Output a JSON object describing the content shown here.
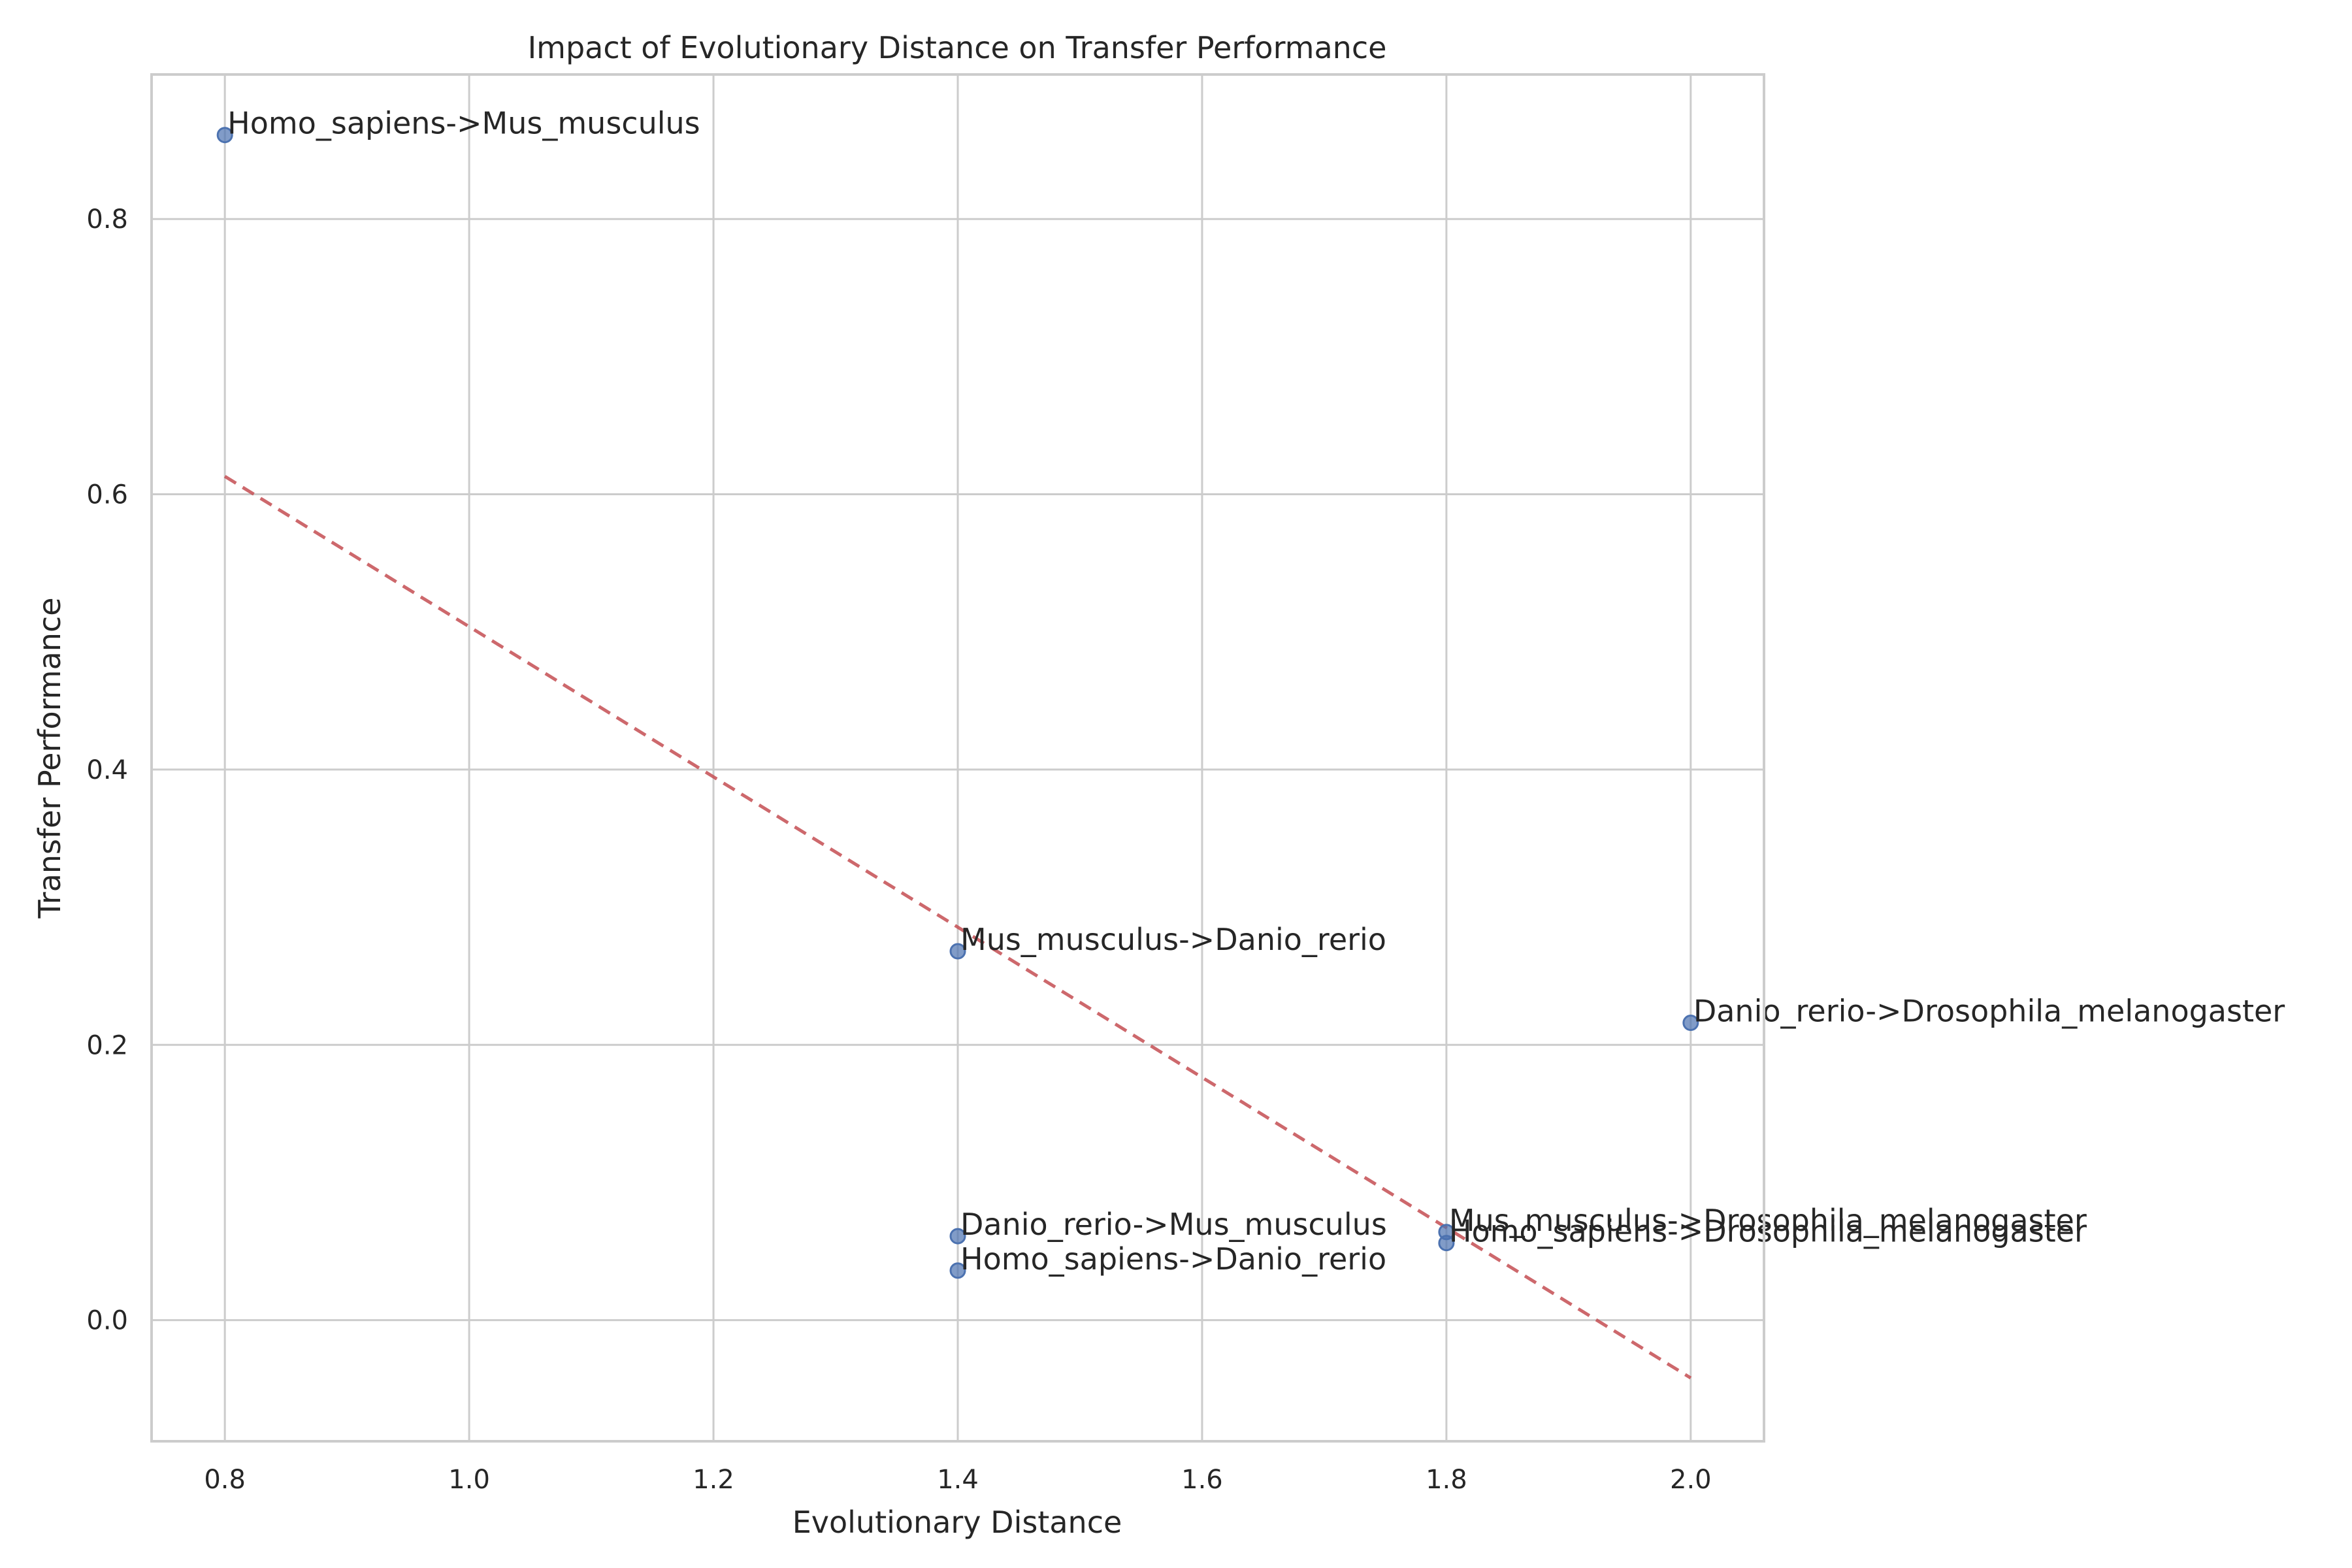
{
  "chart_data": {
    "type": "scatter",
    "title": "Impact of Evolutionary Distance on Transfer Performance",
    "xlabel": "Evolutionary Distance",
    "ylabel": "Transfer Performance",
    "xlim": [
      0.74,
      2.06
    ],
    "ylim": [
      -0.088,
      0.905
    ],
    "xticks": [
      0.8,
      1.0,
      1.2,
      1.4,
      1.6,
      1.8,
      2.0
    ],
    "yticks": [
      0.0,
      0.2,
      0.4,
      0.6,
      0.8
    ],
    "grid": true,
    "points": [
      {
        "x": 0.8,
        "y": 0.861,
        "label": "Homo_sapiens->Mus_musculus"
      },
      {
        "x": 1.4,
        "y": 0.268,
        "label": "Mus_musculus->Danio_rerio"
      },
      {
        "x": 2.0,
        "y": 0.216,
        "label": "Danio_rerio->Drosophila_melanogaster"
      },
      {
        "x": 1.8,
        "y": 0.064,
        "label": "Mus_musculus->Drosophila_melanogaster"
      },
      {
        "x": 1.8,
        "y": 0.056,
        "label": "Homo_sapiens->Drosophila_melanogaster"
      },
      {
        "x": 1.4,
        "y": 0.061,
        "label": "Danio_rerio->Mus_musculus"
      },
      {
        "x": 1.4,
        "y": 0.036,
        "label": "Homo_sapiens->Danio_rerio"
      }
    ],
    "trendline": {
      "x": [
        0.8,
        2.0
      ],
      "y": [
        0.613,
        -0.042
      ],
      "style": "dashed",
      "color": "#c44e52"
    },
    "point_color": "#4c72b0"
  }
}
